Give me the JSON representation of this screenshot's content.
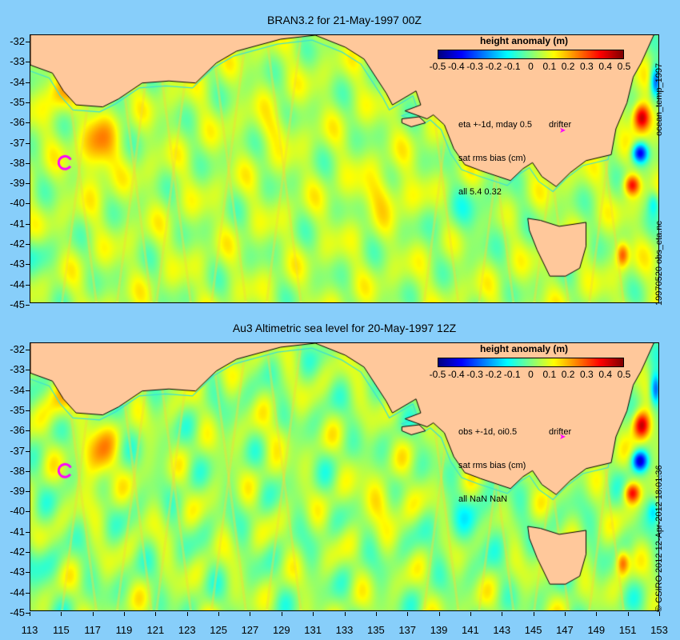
{
  "panels": [
    {
      "title": "BRAN3.2 for 21-May-1997 00Z",
      "annotation_lines": [
        "eta +-1d, mday 0.5",
        "sat rms bias (cm)",
        "all 5.4 0.32"
      ],
      "drifter_label": "drifter",
      "colorbar_title": "height anomaly (m)",
      "side_label_top": "ocean_temp_1997",
      "side_label_bottom": "19970520 obs_eta.nc"
    },
    {
      "title": "Au3 Altimetric sea level  for 20-May-1997 12Z",
      "annotation_lines": [
        "obs +-1d, oi0.5",
        "sat rms bias (cm)",
        "all NaN NaN"
      ],
      "drifter_label": "drifter",
      "colorbar_title": "height anomaly (m)",
      "side_label_top": "",
      "side_label_bottom": "© CSIRO 2012   12-Apr-2012 18:01:36"
    }
  ],
  "colorbar": {
    "ticks": [
      "-0.5",
      "-0.4",
      "-0.3",
      "-0.2",
      "-0.1",
      "0",
      "0.1",
      "0.2",
      "0.3",
      "0.4",
      "0.5"
    ],
    "range": [
      -0.5,
      0.5
    ],
    "colors": [
      "#00007f",
      "#0000ff",
      "#007fff",
      "#00ffff",
      "#7fff7f",
      "#ffff00",
      "#ff7f00",
      "#ff0000",
      "#7f0000"
    ]
  },
  "lat_ticks": [
    "-32",
    "-33",
    "-34",
    "-35",
    "-36",
    "-37",
    "-38",
    "-39",
    "-40",
    "-41",
    "-42",
    "-43",
    "-44",
    "-45"
  ],
  "lon_ticks": [
    "113",
    "115",
    "117",
    "119",
    "121",
    "123",
    "125",
    "127",
    "129",
    "131",
    "133",
    "135",
    "137",
    "139",
    "141",
    "143",
    "145",
    "147",
    "149",
    "151",
    "153"
  ],
  "map_extent": {
    "lon": [
      113,
      153
    ],
    "lat": [
      -31.5,
      -45
    ]
  },
  "land_color": "#ffc89b",
  "ocean_base_color": "#2fd42f",
  "shelf_line_color": "#40e0d0",
  "drifter_color": "#ff00ff"
}
